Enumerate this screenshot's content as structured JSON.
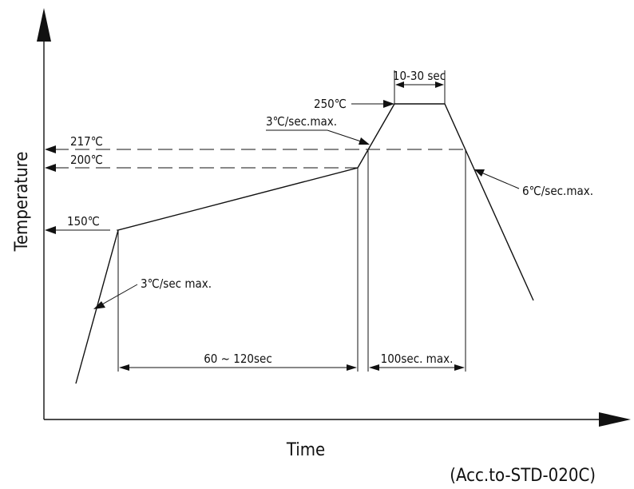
{
  "axes": {
    "y_title": "Temperature",
    "x_title": "Time"
  },
  "temperatures": {
    "peak": "250℃",
    "liquidus": "217℃",
    "soak_max": "200℃",
    "soak_min": "150℃"
  },
  "rates": {
    "ramp_up_1": "3℃/sec max.",
    "ramp_up_2": "3℃/sec.max.",
    "ramp_down": "6℃/sec.max."
  },
  "durations": {
    "peak_hold": "10-30 sec",
    "soak": "60 ~ 120sec",
    "above_liquidus": "100sec. max."
  },
  "footnote": "(Acc.to-STD-020C)"
}
